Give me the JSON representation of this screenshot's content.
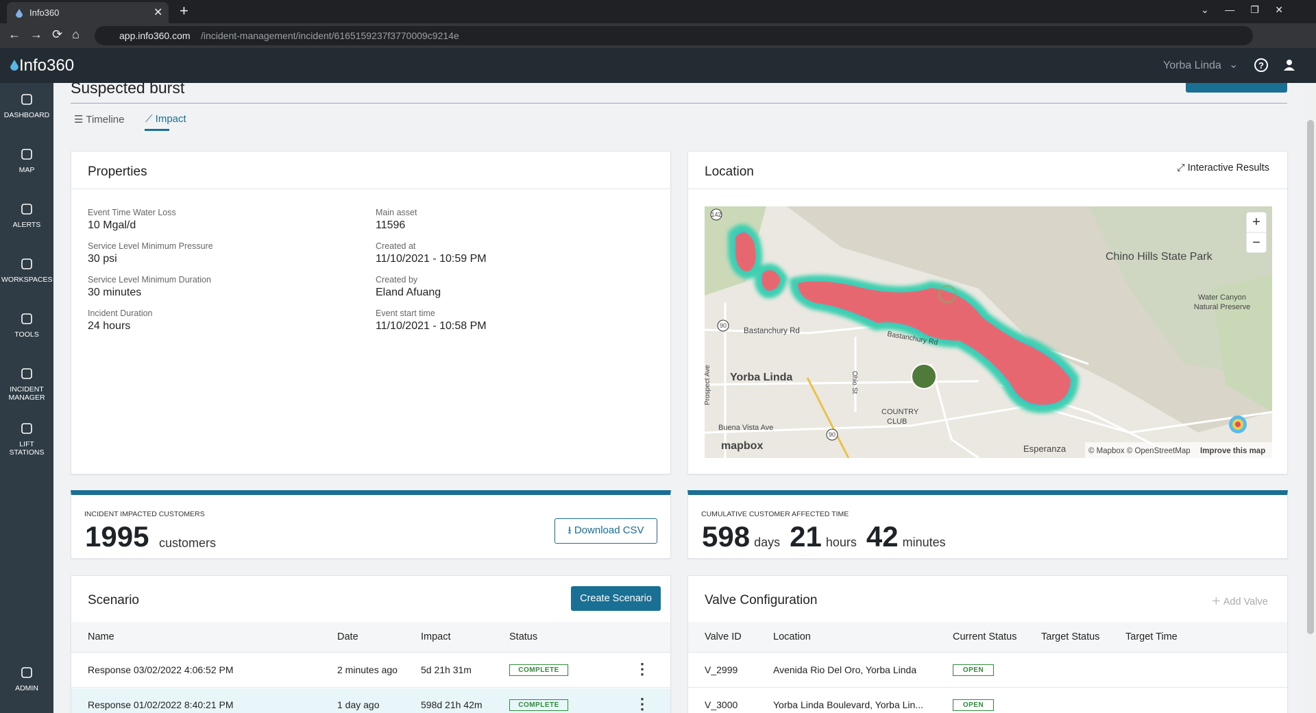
{
  "browser": {
    "tab_title": "Info360",
    "url_host": "app.info360.com",
    "url_path": "/incident-management/incident/6165159237f3770009c9214e"
  },
  "header": {
    "brand": "Info360",
    "site": "Yorba Linda"
  },
  "sidebar": [
    "DASHBOARD",
    "MAP",
    "ALERTS",
    "WORKSPACES",
    "TOOLS",
    "INCIDENT MANAGER",
    "LIFT STATIONS"
  ],
  "sidebar_bottom": "ADMIN",
  "page": {
    "title": "Suspected burst",
    "tabs": [
      "Timeline",
      "Impact"
    ]
  },
  "properties": {
    "title": "Properties",
    "left": [
      {
        "label": "Event Time Water Loss",
        "value": "10 Mgal/d"
      },
      {
        "label": "Service Level Minimum Pressure",
        "value": "30 psi"
      },
      {
        "label": "Service Level Minimum Duration",
        "value": "30 minutes"
      },
      {
        "label": "Incident Duration",
        "value": "24 hours"
      }
    ],
    "right": [
      {
        "label": "Main asset",
        "value": "11596"
      },
      {
        "label": "Created at",
        "value": "11/10/2021 - 10:59 PM"
      },
      {
        "label": "Created by",
        "value": "Eland Afuang"
      },
      {
        "label": "Event start time",
        "value": "11/10/2021 - 10:58 PM"
      }
    ]
  },
  "location": {
    "title": "Location",
    "action": "Interactive Results",
    "map_labels": [
      "Chino Hills State Park",
      "Water Canyon",
      "Natural Preserve",
      "Yorba Linda",
      "Bastanchury Rd",
      "Bastanchury Rd",
      "Prospect Ave",
      "Ohio St",
      "COUNTRY",
      "CLUB",
      "Buena Vista Ave",
      "Esperanza",
      "142",
      "90",
      "90"
    ],
    "logo": "mapbox",
    "attribution": "© Mapbox © OpenStreetMap",
    "improve": "Improve this map"
  },
  "customers": {
    "label": "INCIDENT IMPACTED CUSTOMERS",
    "value": 1995,
    "unit": "customers",
    "button": "Download CSV"
  },
  "affected_time": {
    "label": "CUMULATIVE CUSTOMER AFFECTED TIME",
    "parts": [
      {
        "value": 598,
        "unit": "days"
      },
      {
        "value": 21,
        "unit": "hours"
      },
      {
        "value": 42,
        "unit": "minutes"
      }
    ]
  },
  "scenario": {
    "title": "Scenario",
    "button": "Create Scenario",
    "columns": [
      "Name",
      "Date",
      "Impact",
      "Status"
    ],
    "rows": [
      [
        "Response 03/02/2022 4:06:52 PM",
        "2 minutes ago",
        "5d 21h 31m",
        "COMPLETE"
      ],
      [
        "Response 01/02/2022 8:40:21 PM",
        "1 day ago",
        "598d 21h 42m",
        "COMPLETE"
      ]
    ]
  },
  "valves": {
    "title": "Valve Configuration",
    "button": "Add Valve",
    "columns": [
      "Valve ID",
      "Location",
      "Current Status",
      "Target Status",
      "Target Time"
    ],
    "rows": [
      [
        "V_2999",
        "Avenida Rio Del Oro, Yorba Linda",
        "OPEN"
      ],
      [
        "V_3000",
        "Yorba Linda Boulevard, Yorba Lin...",
        "OPEN"
      ]
    ]
  }
}
